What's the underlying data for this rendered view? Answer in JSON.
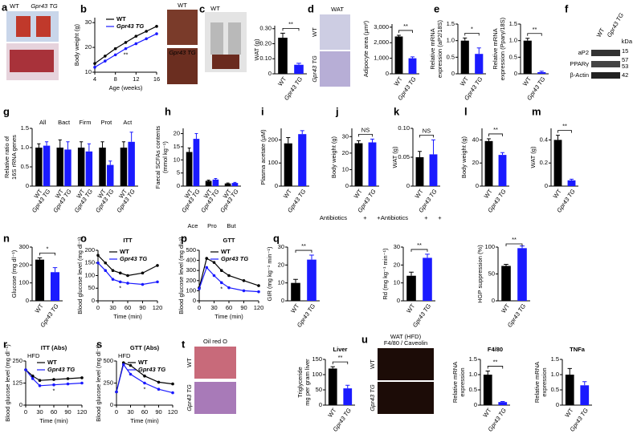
{
  "chart_data": [
    {
      "type": "line",
      "panel": "b",
      "ylabel": [
        "Body weight (g)"
      ],
      "xlabel": "Age (weeks)",
      "x": [
        4,
        6,
        8,
        10,
        12,
        14,
        16
      ],
      "xlim": [
        4,
        16
      ],
      "xticks": [
        4,
        8,
        12,
        16
      ],
      "ylim": [
        10,
        32
      ],
      "yticks": [
        10,
        20,
        30
      ],
      "series": [
        {
          "name": "WT",
          "color": "#000000",
          "values": [
            13.5,
            16.5,
            19.5,
            22,
            24.5,
            26.5,
            28.5
          ]
        },
        {
          "name": "Gpr43 TG",
          "color": "#1a1aff",
          "values": [
            12,
            14.5,
            17,
            19.5,
            21.5,
            23.5,
            25.5
          ]
        }
      ],
      "annotation": "**"
    },
    {
      "type": "bar",
      "ylabel": [
        "WAT (g)"
      ],
      "categories": [
        "WT",
        "Gpr43 TG"
      ],
      "values": [
        0.24,
        0.06
      ],
      "errors": [
        0.03,
        0.01
      ],
      "colors": [
        "#000000",
        "#1a1aff"
      ],
      "ylim": [
        0,
        0.32
      ],
      "yticks": [
        0,
        {
          "value": 0.1,
          "label": "0.10"
        },
        {
          "value": 0.2,
          "label": "0.20"
        },
        {
          "value": 0.3,
          "label": "0.30"
        }
      ],
      "annotation": "**"
    },
    {
      "type": "bar",
      "ylabel": [
        "Adipocyte area (µm²)"
      ],
      "categories": [
        "WT",
        "Gpr43 TG"
      ],
      "values": [
        2400,
        1000
      ],
      "errors": [
        80,
        90
      ],
      "colors": [
        "#000000",
        "#1a1aff"
      ],
      "ylim": [
        0,
        3200
      ],
      "yticks": [
        0,
        {
          "value": 1000,
          "label": "1,000"
        },
        {
          "value": 2000,
          "label": "2,000"
        },
        {
          "value": 3000,
          "label": "3,000"
        }
      ],
      "annotation": "**"
    },
    {
      "type": "bar",
      "panel": "e",
      "ylabel": [
        "Relative mRNA",
        "expression (aP2/18S)"
      ],
      "categories": [
        "WT",
        "Gpr43 TG"
      ],
      "values": [
        1.0,
        0.6
      ],
      "errors": [
        0.08,
        0.18
      ],
      "colors": [
        "#000000",
        "#1a1aff"
      ],
      "ylim": [
        0,
        1.5
      ],
      "yticks": [
        0,
        0.5,
        {
          "value": 1,
          "label": "1.0"
        },
        1.5
      ],
      "annotation": "*"
    },
    {
      "type": "bar",
      "ylabel": [
        "Relative mRNA",
        "expression (Pparγ/18S)"
      ],
      "categories": [
        "WT",
        "Gpr43 TG"
      ],
      "values": [
        1.0,
        0.05
      ],
      "errors": [
        0.07,
        0.03
      ],
      "colors": [
        "#000000",
        "#1a1aff"
      ],
      "ylim": [
        0,
        1.5
      ],
      "yticks": [
        0,
        0.5,
        {
          "value": 1,
          "label": "1.0"
        },
        1.5
      ],
      "annotation": "**"
    },
    {
      "type": "bar",
      "panel": "g",
      "ylabel": [
        "Relative ratio of",
        "16S rRNA genes"
      ],
      "groups": [
        "All",
        "Bact",
        "Firm",
        "Prot",
        "Act"
      ],
      "series": [
        {
          "name": "WT",
          "color": "#000000",
          "values": [
            1.0,
            1.0,
            1.0,
            1.0,
            1.0
          ],
          "errors": [
            0.1,
            0.2,
            0.15,
            0.15,
            0.15
          ]
        },
        {
          "name": "Gpr43 TG",
          "color": "#1a1aff",
          "values": [
            1.05,
            0.95,
            0.9,
            0.55,
            1.15
          ],
          "errors": [
            0.1,
            0.2,
            0.2,
            0.1,
            0.25
          ]
        }
      ],
      "ylim": [
        0,
        1.5
      ],
      "yticks": [
        0,
        0.5,
        {
          "value": 1,
          "label": "1.0"
        },
        1.5
      ]
    },
    {
      "type": "bar",
      "panel": "h",
      "ylabel": [
        "Faecal SCFAs contents",
        "(mmol kg⁻¹)"
      ],
      "groups": [
        "Ace",
        "Pro",
        "But"
      ],
      "series": [
        {
          "name": "WT",
          "color": "#000000",
          "values": [
            13,
            2,
            1
          ],
          "errors": [
            1.5,
            0.3,
            0.2
          ]
        },
        {
          "name": "Gpr43 TG",
          "color": "#1a1aff",
          "values": [
            18,
            2.5,
            1.2
          ],
          "errors": [
            2,
            0.4,
            0.2
          ]
        }
      ],
      "ylim": [
        0,
        22
      ],
      "yticks": [
        0,
        5,
        10,
        15,
        20
      ]
    },
    {
      "type": "bar",
      "panel": "i",
      "ylabel": [
        "Plasma acetate (µM)"
      ],
      "categories": [
        "WT",
        "Gpr43 TG"
      ],
      "values": [
        185,
        225
      ],
      "errors": [
        25,
        15
      ],
      "colors": [
        "#000000",
        "#1a1aff"
      ],
      "ylim": [
        0,
        250
      ],
      "yticks": [
        0,
        100,
        200
      ]
    },
    {
      "type": "bar",
      "panel": "j",
      "ylabel": [
        "Body weight (g)"
      ],
      "categories": [
        "WT",
        "Gpr43 TG"
      ],
      "values": [
        26,
        26.5
      ],
      "errors": [
        1.5,
        2
      ],
      "colors": [
        "#000000",
        "#1a1aff"
      ],
      "ylim": [
        0,
        35
      ],
      "yticks": [
        0,
        10,
        20,
        30
      ],
      "annotation": "NS",
      "xlabel": "Antibiotics",
      "treatment": [
        "+",
        "+"
      ]
    },
    {
      "type": "bar",
      "panel": "k",
      "ylabel": [
        "WAT (g)"
      ],
      "categories": [
        "WT",
        "Gpr43 TG"
      ],
      "values": [
        0.05,
        0.055
      ],
      "errors": [
        0.01,
        0.025
      ],
      "colors": [
        "#000000",
        "#1a1aff"
      ],
      "ylim": [
        0,
        0.1
      ],
      "yticks": [
        0,
        0.05,
        {
          "value": 0.1,
          "label": "0.10"
        }
      ],
      "annotation": "NS",
      "xlabel": "Antibiotics",
      "treatment": [
        "+",
        "+"
      ]
    },
    {
      "type": "bar",
      "panel": "l",
      "ylabel": [
        "Body weight (g)"
      ],
      "categories": [
        "WT",
        "Gpr43 TG"
      ],
      "values": [
        39,
        27
      ],
      "errors": [
        2,
        2
      ],
      "colors": [
        "#000000",
        "#1a1aff"
      ],
      "ylim": [
        0,
        50
      ],
      "yticks": [
        0,
        20,
        40
      ],
      "annotation": "**"
    },
    {
      "type": "bar",
      "panel": "m",
      "ylabel": [
        "WAT (g)"
      ],
      "categories": [
        "WT",
        "Gpr43 TG"
      ],
      "values": [
        0.4,
        0.05
      ],
      "errors": [
        0.04,
        0.01
      ],
      "colors": [
        "#000000",
        "#1a1aff"
      ],
      "ylim": [
        0,
        0.5
      ],
      "yticks": [
        0,
        0.2,
        0.4
      ],
      "annotation": "**"
    },
    {
      "type": "bar",
      "panel": "n",
      "ylabel": [
        "Glucose (mg dl⁻¹)"
      ],
      "categories": [
        "WT",
        "Gpr43 TG"
      ],
      "values": [
        230,
        160
      ],
      "errors": [
        10,
        25
      ],
      "colors": [
        "#000000",
        "#1a1aff"
      ],
      "ylim": [
        0,
        300
      ],
      "yticks": [
        0,
        100,
        200,
        300
      ],
      "annotation": "*"
    },
    {
      "type": "line",
      "panel": "o",
      "title": "ITT",
      "ylabel": [
        "Blood glucose level (mg dl⁻¹)"
      ],
      "xlabel": "Time (min)",
      "x": [
        0,
        15,
        30,
        45,
        60,
        90,
        120
      ],
      "xlim": [
        0,
        120
      ],
      "xticks": [
        0,
        30,
        60,
        90,
        120
      ],
      "ylim": [
        0,
        200
      ],
      "yticks": [
        0,
        50,
        100,
        150,
        200
      ],
      "series": [
        {
          "name": "WT",
          "color": "#000000",
          "values": [
            180,
            150,
            120,
            110,
            100,
            110,
            140
          ]
        },
        {
          "name": "Gpr43 TG",
          "color": "#1a1aff",
          "values": [
            150,
            120,
            85,
            75,
            70,
            65,
            75
          ]
        }
      ],
      "annotation": "*"
    },
    {
      "type": "line",
      "panel": "p",
      "title": "GTT",
      "ylabel": [
        "Blood glucose level (mg dl⁻¹)"
      ],
      "xlabel": "Time (min)",
      "x": [
        0,
        15,
        30,
        45,
        60,
        90,
        120
      ],
      "xlim": [
        0,
        120
      ],
      "xticks": [
        0,
        30,
        60,
        90,
        120
      ],
      "ylim": [
        0,
        500
      ],
      "yticks": [
        0,
        100,
        200,
        300,
        400,
        500
      ],
      "series": [
        {
          "name": "WT",
          "color": "#000000",
          "values": [
            130,
            420,
            380,
            300,
            250,
            200,
            150
          ]
        },
        {
          "name": "Gpr43 TG",
          "color": "#1a1aff",
          "values": [
            120,
            330,
            250,
            180,
            130,
            100,
            90
          ]
        }
      ],
      "annotation": "*"
    },
    {
      "type": "bar",
      "panel": "q",
      "ylabel": [
        "GIR (mg kg⁻¹ min⁻¹)"
      ],
      "categories": [
        "WT",
        "Gpr43 TG"
      ],
      "values": [
        10,
        23
      ],
      "errors": [
        2,
        2.5
      ],
      "colors": [
        "#000000",
        "#1a1aff"
      ],
      "ylim": [
        0,
        30
      ],
      "yticks": [
        0,
        10,
        20,
        30
      ],
      "annotation": "**"
    },
    {
      "type": "bar",
      "ylabel": [
        "Rd (mg kg⁻¹ min⁻¹)"
      ],
      "categories": [
        "WT",
        "Gpr43 TG"
      ],
      "values": [
        14,
        24
      ],
      "errors": [
        2,
        2
      ],
      "colors": [
        "#000000",
        "#1a1aff"
      ],
      "ylim": [
        0,
        30
      ],
      "yticks": [
        0,
        10,
        20,
        30
      ],
      "annotation": "**"
    },
    {
      "type": "bar",
      "ylabel": [
        "HGP suppression (%)"
      ],
      "categories": [
        "WT",
        "Gpr43 TG"
      ],
      "values": [
        65,
        98
      ],
      "errors": [
        3,
        4
      ],
      "colors": [
        "#000000",
        "#1a1aff"
      ],
      "ylim": [
        0,
        100
      ],
      "yticks": [
        0,
        50,
        100
      ],
      "annotation": "**"
    },
    {
      "type": "line",
      "panel": "r",
      "title": "ITT (Abs)",
      "legend_title": "HFD",
      "ylabel": [
        "Blood glucose level (mg dl⁻¹)"
      ],
      "xlabel": "Time (min)",
      "x": [
        0,
        15,
        30,
        60,
        90,
        120
      ],
      "xlim": [
        0,
        120
      ],
      "xticks": [
        0,
        30,
        60,
        90,
        120
      ],
      "ylim": [
        0,
        250
      ],
      "yticks": [
        0,
        125,
        250
      ],
      "series": [
        {
          "name": "WT",
          "color": "#000000",
          "values": [
            200,
            165,
            140,
            145,
            150,
            155
          ]
        },
        {
          "name": "Gpr43 TG",
          "color": "#1a1aff",
          "values": [
            200,
            150,
            110,
            115,
            120,
            125
          ]
        }
      ],
      "annotation": "*"
    },
    {
      "type": "line",
      "panel": "s",
      "title": "GTT (Abs)",
      "legend_title": "HFD",
      "ylabel": [
        "Blood glucose level (mg dl⁻¹)"
      ],
      "xlabel": "Time (min)",
      "x": [
        0,
        15,
        30,
        60,
        90,
        120
      ],
      "xlim": [
        0,
        120
      ],
      "xticks": [
        0,
        30,
        60,
        90,
        120
      ],
      "ylim": [
        0,
        500
      ],
      "yticks": [
        0,
        250,
        500
      ],
      "series": [
        {
          "name": "WT",
          "color": "#000000",
          "values": [
            150,
            480,
            450,
            330,
            260,
            240
          ]
        },
        {
          "name": "Gpr43 TG",
          "color": "#1a1aff",
          "values": [
            150,
            460,
            350,
            250,
            180,
            140
          ]
        }
      ],
      "annotation": "*"
    },
    {
      "type": "bar",
      "title": "Liver",
      "ylabel": [
        "Triglyceride",
        "mg per gram liver"
      ],
      "categories": [
        "WT",
        "Gpr43 TG"
      ],
      "values": [
        120,
        55
      ],
      "errors": [
        6,
        10
      ],
      "colors": [
        "#000000",
        "#1a1aff"
      ],
      "ylim": [
        0,
        150
      ],
      "yticks": [
        0,
        50,
        100,
        150
      ],
      "annotation": "**"
    },
    {
      "type": "bar",
      "title": "F4/80",
      "ylabel": [
        "Relative mRNA",
        "expression"
      ],
      "categories": [
        "WT",
        "Gpr43 TG"
      ],
      "values": [
        1.0,
        0.1
      ],
      "errors": [
        0.12,
        0.02
      ],
      "colors": [
        "#000000",
        "#1a1aff"
      ],
      "ylim": [
        0,
        1.5
      ],
      "yticks": [
        0,
        0.5,
        {
          "value": 1,
          "label": "1.0"
        },
        1.5
      ],
      "annotation": "**"
    },
    {
      "type": "bar",
      "title": "TNFa",
      "ylabel": [
        "Relative mRNA",
        "expression"
      ],
      "categories": [
        "WT",
        "Gpr43 TG"
      ],
      "values": [
        1.0,
        0.65
      ],
      "errors": [
        0.2,
        0.12
      ],
      "colors": [
        "#000000",
        "#1a1aff"
      ],
      "ylim": [
        0,
        1.5
      ],
      "yticks": [
        0,
        0.5,
        {
          "value": 1,
          "label": "1.0"
        },
        1.5
      ]
    }
  ],
  "images": [
    {
      "panel": "a",
      "labels": [
        "WT",
        "Gpr43 TG"
      ]
    },
    {
      "labels": [
        "WT",
        "Gpr43 TG"
      ]
    },
    {
      "panel": "c",
      "labels": [
        "WT"
      ]
    },
    {
      "panel": "d",
      "labels": [
        "WAT",
        "WT",
        "Gpr43 TG"
      ]
    },
    {
      "panel": "f",
      "labels": [
        "WT",
        "Gpr43 TG",
        "kDa",
        "aP2",
        "PPARγ",
        "β-Actin",
        "15",
        "57",
        "53",
        "42"
      ]
    },
    {
      "panel": "t",
      "labels": [
        "Oil red O",
        "WT",
        "Gpr43 TG"
      ]
    },
    {
      "panel": "u",
      "labels": [
        "WAT (HFD)",
        "F4/80",
        "/",
        "Caveolin",
        "WT",
        "Gpr43 TG"
      ]
    }
  ]
}
